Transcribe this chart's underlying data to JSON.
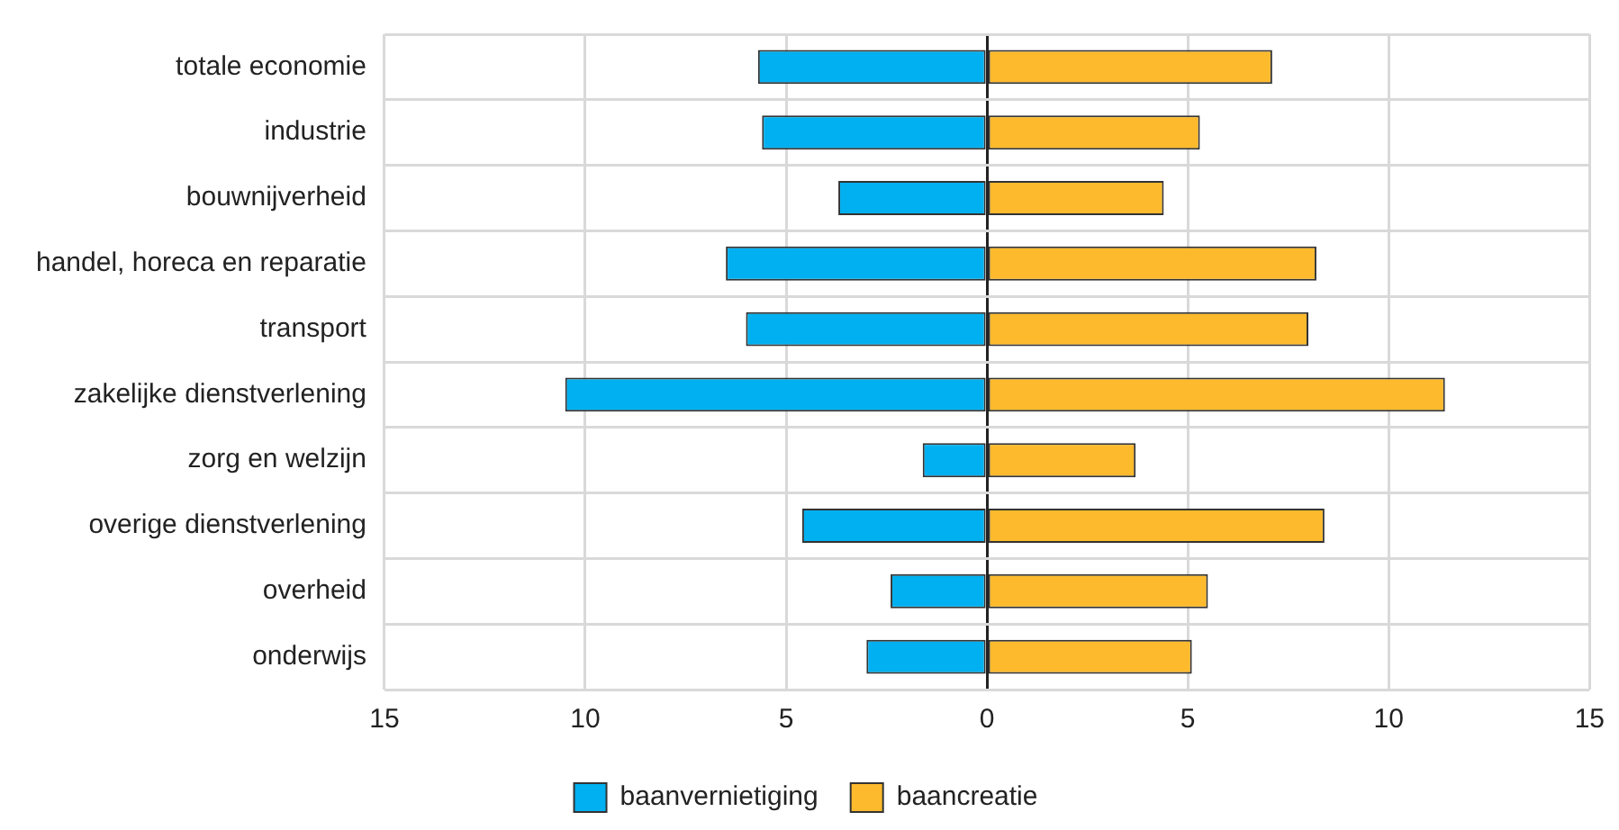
{
  "chart_data": {
    "type": "bar",
    "orientation": "horizontal",
    "stacked": true,
    "categories": [
      "totale economie",
      "industrie",
      "bouwnijverheid",
      "handel, horeca en reparatie",
      "transport",
      "zakelijke dienstverlening",
      "zorg en welzijn",
      "overige dienstverlening",
      "overheid",
      "onderwijs"
    ],
    "series": [
      {
        "name": "baanvernietiging",
        "color": "#00b0f0",
        "values": [
          -5.7,
          -5.6,
          -3.7,
          -6.5,
          -6.0,
          -10.5,
          -1.6,
          -4.6,
          -2.4,
          -3.0
        ]
      },
      {
        "name": "baancreatie",
        "color": "#fdba2c",
        "values": [
          7.1,
          5.3,
          4.4,
          8.2,
          8.0,
          11.4,
          3.7,
          8.4,
          5.5,
          5.1
        ]
      }
    ],
    "xlim": [
      -15,
      15
    ],
    "xticks": [
      {
        "value": -15,
        "label": "15"
      },
      {
        "value": -10,
        "label": "10"
      },
      {
        "value": -5,
        "label": "5"
      },
      0,
      5,
      10,
      15
    ],
    "grid": true,
    "legend": "bottom"
  }
}
